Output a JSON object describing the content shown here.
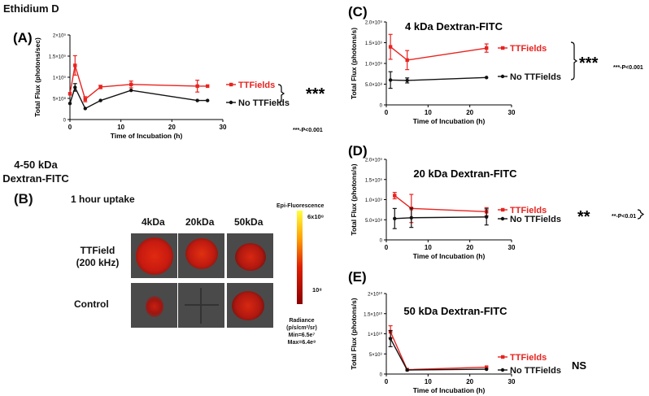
{
  "left": {
    "title": "Ethidium D",
    "dextran_title": "4-50 kDa\nDextran-FITC",
    "panel_b": {
      "letter": "(B)",
      "subtitle": "1 hour uptake",
      "columns": [
        "4kDa",
        "20kDa",
        "50kDa"
      ],
      "rows": [
        "TTField\n(200 kHz)",
        "Control"
      ],
      "colorbar": {
        "title": "Epi-Fluorescence",
        "top_label": "6x10⁸",
        "mid_label": "10⁸",
        "units": "Radiance\n(p/s/cm²/sr)\nMin=6.5e⁷\nMax=6.4e⁸",
        "colors": [
          "#ffff40",
          "#ffa000",
          "#e02000",
          "#8b0000"
        ]
      }
    }
  },
  "chart_data": [
    {
      "type": "line",
      "panel": "(A)",
      "title": "",
      "xlabel": "Time of Incubation (h)",
      "ylabel": "Total Flux (photons/sec)",
      "xlim": [
        0,
        30
      ],
      "ylim": [
        0,
        2000000000
      ],
      "x_ticks": [
        "0",
        "10",
        "20",
        "30"
      ],
      "y_ticks": [
        "0",
        "5×10⁸",
        "1×10⁹",
        "1.5×10⁹",
        "2×10⁹"
      ],
      "series": [
        {
          "name": "TTFields",
          "color": "#e8231f",
          "x": [
            0,
            1,
            3,
            6,
            12,
            25,
            27
          ],
          "y": [
            610000000,
            1280000000,
            480000000,
            770000000,
            830000000,
            790000000,
            790000000
          ],
          "err": [
            0,
            230000000,
            60000000,
            40000000,
            80000000,
            140000000,
            0
          ]
        },
        {
          "name": "No TTFields",
          "color": "#111111",
          "x": [
            0,
            1,
            3,
            6,
            12,
            25,
            27
          ],
          "y": [
            380000000,
            760000000,
            260000000,
            450000000,
            690000000,
            450000000,
            450000000
          ],
          "err": [
            0,
            90000000,
            0,
            0,
            0,
            0,
            0
          ]
        }
      ],
      "significance": "***",
      "pvalue": "***-P<0.001"
    },
    {
      "type": "line",
      "panel": "(C)",
      "title": "4 kDa Dextran-FITC",
      "xlabel": "Time of Incubation (h)",
      "ylabel": "Total Flux (photons/s)",
      "xlim": [
        0,
        30
      ],
      "ylim": [
        0,
        2000000000
      ],
      "x_ticks": [
        "0",
        "10",
        "20",
        "30"
      ],
      "y_ticks": [
        "0",
        "5.0×10⁸",
        "1.0×10⁹",
        "1.5×10⁹",
        "2.0×10⁹"
      ],
      "series": [
        {
          "name": "TTFields",
          "color": "#e8231f",
          "x": [
            1,
            5,
            24
          ],
          "y": [
            1400000000,
            1080000000,
            1370000000
          ],
          "err": [
            300000000,
            230000000,
            100000000
          ]
        },
        {
          "name": "No TTFields",
          "color": "#111111",
          "x": [
            1,
            5,
            24
          ],
          "y": [
            600000000,
            590000000,
            660000000
          ],
          "err": [
            200000000,
            60000000,
            0
          ]
        }
      ],
      "significance": "***",
      "pvalue": "***-P<0.001"
    },
    {
      "type": "line",
      "panel": "(D)",
      "title": "20 kDa Dextran-FITC",
      "xlabel": "Time of Incubation (h)",
      "ylabel": "Total Flux (photons/s)",
      "xlim": [
        0,
        30
      ],
      "ylim": [
        0,
        2000000000
      ],
      "x_ticks": [
        "0",
        "10",
        "20",
        "30"
      ],
      "y_ticks": [
        "0",
        "5.0×10⁸",
        "1.0×10⁹",
        "1.5×10⁹",
        "2.0×10⁹"
      ],
      "series": [
        {
          "name": "TTFields",
          "color": "#e8231f",
          "x": [
            2,
            6,
            24
          ],
          "y": [
            1100000000,
            780000000,
            700000000
          ],
          "err": [
            80000000,
            350000000,
            100000000
          ]
        },
        {
          "name": "No TTFields",
          "color": "#111111",
          "x": [
            2,
            6,
            24
          ],
          "y": [
            530000000,
            550000000,
            570000000
          ],
          "err": [
            250000000,
            240000000,
            200000000
          ]
        }
      ],
      "significance": "**",
      "pvalue": "**-P<0.01"
    },
    {
      "type": "line",
      "panel": "(E)",
      "title": "50 kDa Dextran-FITC",
      "xlabel": "Time of Incubation (h)",
      "ylabel": "Total Flux (photons/s)",
      "xlim": [
        0,
        30
      ],
      "ylim": [
        0,
        20000000000
      ],
      "x_ticks": [
        "0",
        "10",
        "20",
        "30"
      ],
      "y_ticks": [
        "0",
        "5×10⁹",
        "1×10¹⁰",
        "1.5×10¹⁰",
        "2×10¹⁰"
      ],
      "series": [
        {
          "name": "TTFields",
          "color": "#e8231f",
          "x": [
            1,
            5,
            24
          ],
          "y": [
            10500000000,
            1100000000,
            1700000000
          ],
          "err": [
            1500000000,
            0,
            0
          ]
        },
        {
          "name": "No TTFields",
          "color": "#111111",
          "x": [
            1,
            5,
            24
          ],
          "y": [
            8800000000,
            1000000000,
            1200000000
          ],
          "err": [
            2000000000,
            0,
            0
          ]
        }
      ],
      "significance": "NS",
      "pvalue": ""
    }
  ]
}
